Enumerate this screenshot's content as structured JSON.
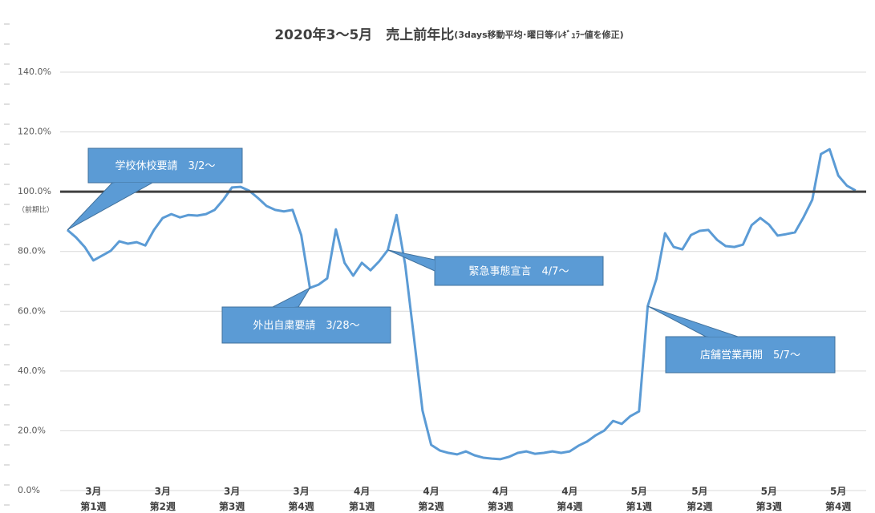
{
  "chart_data": {
    "type": "line",
    "title": "2020年3〜5月　売上前年比",
    "subtitle": "(3days移動平均･曜日等ｲﾚｷﾞｭﾗｰ値を修正)",
    "y_axis_note": "（前期比）",
    "categories": [
      null,
      null,
      null,
      "3月\n第1週",
      null,
      null,
      null,
      null,
      null,
      null,
      null,
      "3月\n第2週",
      null,
      null,
      null,
      null,
      null,
      null,
      null,
      "3月\n第3週",
      null,
      null,
      null,
      null,
      null,
      null,
      null,
      "3月\n第4週",
      null,
      null,
      null,
      null,
      null,
      null,
      "4月\n第1週",
      null,
      null,
      null,
      null,
      null,
      null,
      null,
      "4月\n第2週",
      null,
      null,
      null,
      null,
      null,
      null,
      null,
      "4月\n第3週",
      null,
      null,
      null,
      null,
      null,
      null,
      null,
      "4月\n第4週",
      null,
      null,
      null,
      null,
      null,
      null,
      null,
      "5月\n第1週",
      null,
      null,
      null,
      null,
      null,
      null,
      "5月\n第2週",
      null,
      null,
      null,
      null,
      null,
      null,
      null,
      "5月\n第3週",
      null,
      null,
      null,
      null,
      null,
      null,
      null,
      "5月\n第4週",
      null,
      null
    ],
    "series": [
      {
        "name": "売上前年比",
        "color": "#5b9bd5",
        "values": [
          87.2,
          84.7,
          81.5,
          77,
          78.6,
          80.2,
          83.4,
          82.6,
          83.1,
          82,
          87.2,
          91.2,
          92.5,
          91.4,
          92.2,
          92,
          92.5,
          93.9,
          97.3,
          101.4,
          101.6,
          100.3,
          97.9,
          95.2,
          93.9,
          93.4,
          93.9,
          85.5,
          67.8,
          68.9,
          71,
          87.4,
          76.2,
          71.9,
          76.2,
          73.7,
          76.7,
          80.5,
          92.2,
          75.6,
          51.5,
          26.8,
          15.3,
          13.4,
          12.6,
          12.1,
          13.1,
          11.8,
          11,
          10.7,
          10.5,
          11.3,
          12.6,
          13.1,
          12.3,
          12.6,
          13.1,
          12.6,
          13.1,
          15,
          16.4,
          18.5,
          20.1,
          23.3,
          22.3,
          24.9,
          26.5,
          61.7,
          70.8,
          86.1,
          81.5,
          80.7,
          85.5,
          86.9,
          87.2,
          83.9,
          81.8,
          81.5,
          82.3,
          88.8,
          91.2,
          89,
          85.3,
          85.8,
          86.4,
          91.5,
          97.3,
          112.6,
          114.2,
          105.4,
          102,
          100.4
        ]
      }
    ],
    "reference_line": {
      "value": 100,
      "color": "#404040"
    },
    "ylim": [
      0,
      140
    ],
    "yticks": [
      {
        "value": 0,
        "label": "0.0%"
      },
      {
        "value": 20,
        "label": "20.0%"
      },
      {
        "value": 40,
        "label": "40.0%"
      },
      {
        "value": 60,
        "label": "60.0%"
      },
      {
        "value": 80,
        "label": "80.0%"
      },
      {
        "value": 100,
        "label": "100.0%"
      },
      {
        "value": 120,
        "label": "120.0%"
      },
      {
        "value": 140,
        "label": "140.0%"
      }
    ],
    "grid": true,
    "annotations": [
      {
        "text": "学校休校要請　3/2～",
        "index": 0
      },
      {
        "text": "外出自粛要請　3/28～",
        "index": 28
      },
      {
        "text": "緊急事態宣言　4/7～",
        "index": 37
      },
      {
        "text": "店舗営業再開　5/7～",
        "index": 67
      }
    ]
  }
}
